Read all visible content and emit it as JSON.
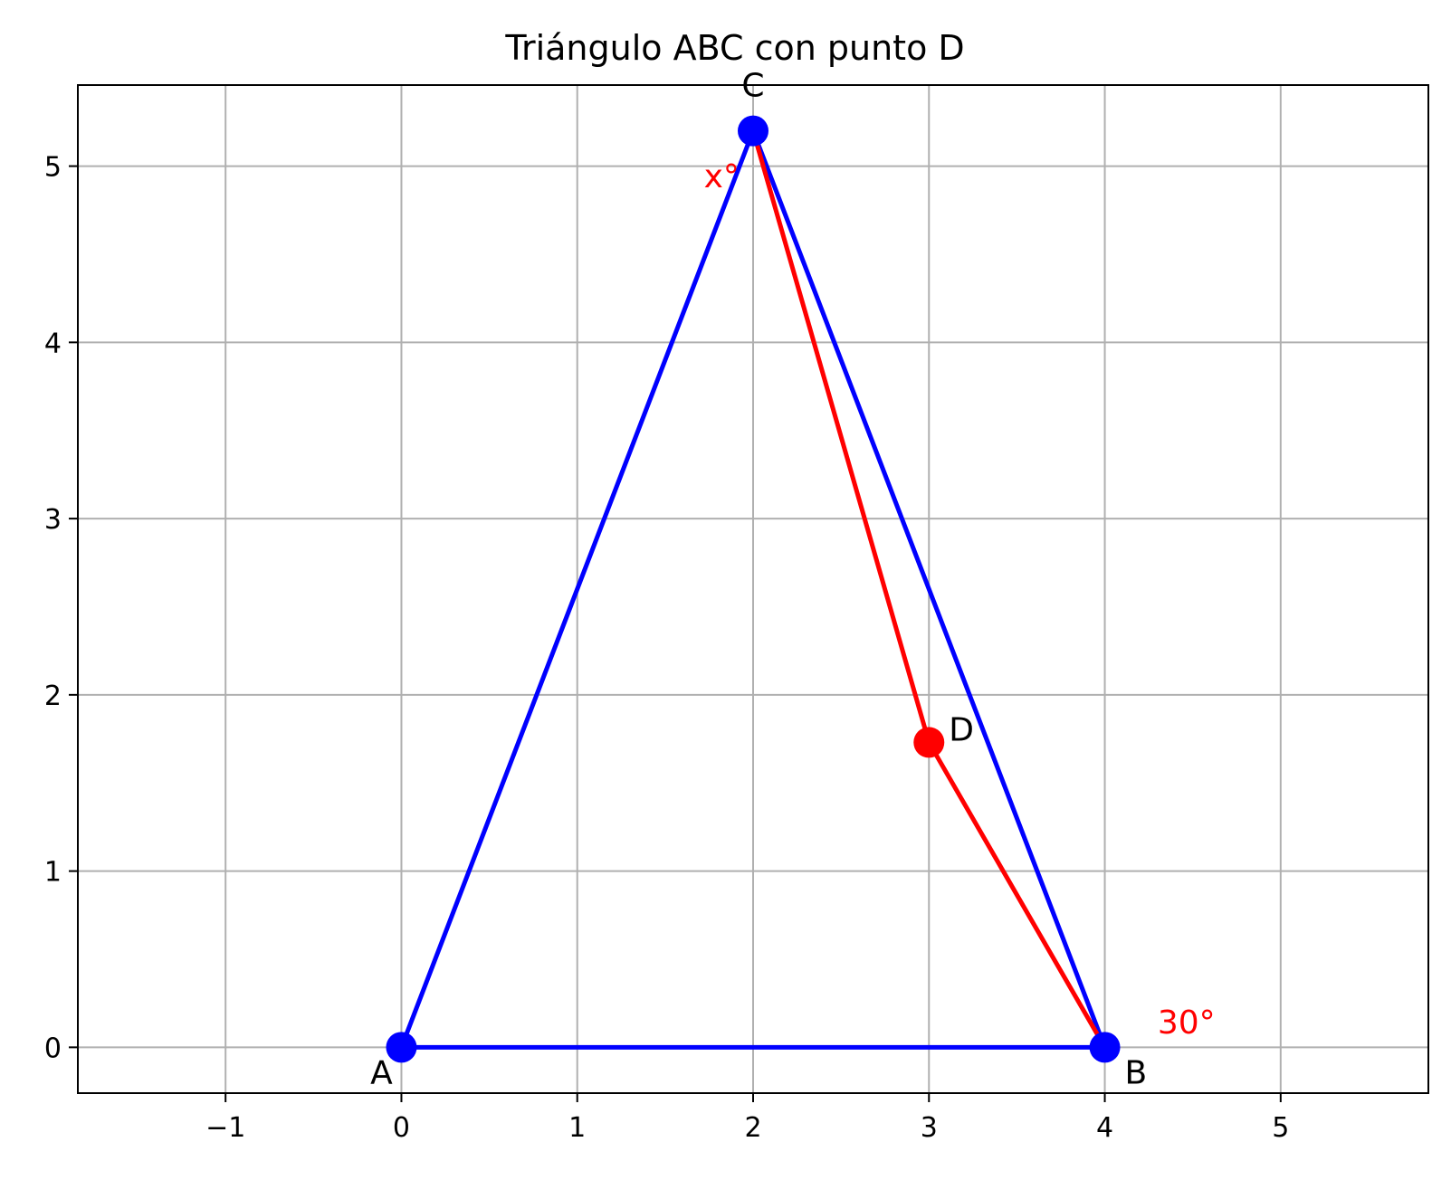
{
  "chart_data": {
    "type": "scatter",
    "title": "Triángulo ABC con punto D",
    "xlim": [
      -1.84,
      5.84
    ],
    "ylim": [
      -0.26,
      5.46
    ],
    "xticks": [
      -1,
      0,
      1,
      2,
      3,
      4,
      5
    ],
    "yticks": [
      0,
      1,
      2,
      3,
      4,
      5
    ],
    "xtick_labels": [
      "−1",
      "0",
      "1",
      "2",
      "3",
      "4",
      "5"
    ],
    "ytick_labels": [
      "0",
      "1",
      "2",
      "3",
      "4",
      "5"
    ],
    "grid": true,
    "colors": {
      "triangle": "#0000ff",
      "segment": "#ff0000",
      "grid": "#b0b0b0",
      "axes": "#000000"
    },
    "points": [
      {
        "name": "A",
        "x": 0,
        "y": 0,
        "color": "#0000ff"
      },
      {
        "name": "B",
        "x": 4,
        "y": 0,
        "color": "#0000ff"
      },
      {
        "name": "C",
        "x": 2,
        "y": 5.2,
        "color": "#0000ff"
      },
      {
        "name": "D",
        "x": 3,
        "y": 1.73,
        "color": "#ff0000"
      }
    ],
    "segments": [
      {
        "from": "A",
        "to": "B",
        "color": "#0000ff"
      },
      {
        "from": "B",
        "to": "C",
        "color": "#0000ff"
      },
      {
        "from": "C",
        "to": "A",
        "color": "#0000ff"
      },
      {
        "from": "C",
        "to": "D",
        "color": "#ff0000"
      },
      {
        "from": "D",
        "to": "B",
        "color": "#ff0000"
      }
    ],
    "annotations": [
      {
        "text": "x°",
        "x": 1.72,
        "y": 4.88,
        "color": "#ff0000"
      },
      {
        "text": "30°",
        "x": 4.3,
        "y": 0.08,
        "color": "#ff0000"
      }
    ]
  }
}
